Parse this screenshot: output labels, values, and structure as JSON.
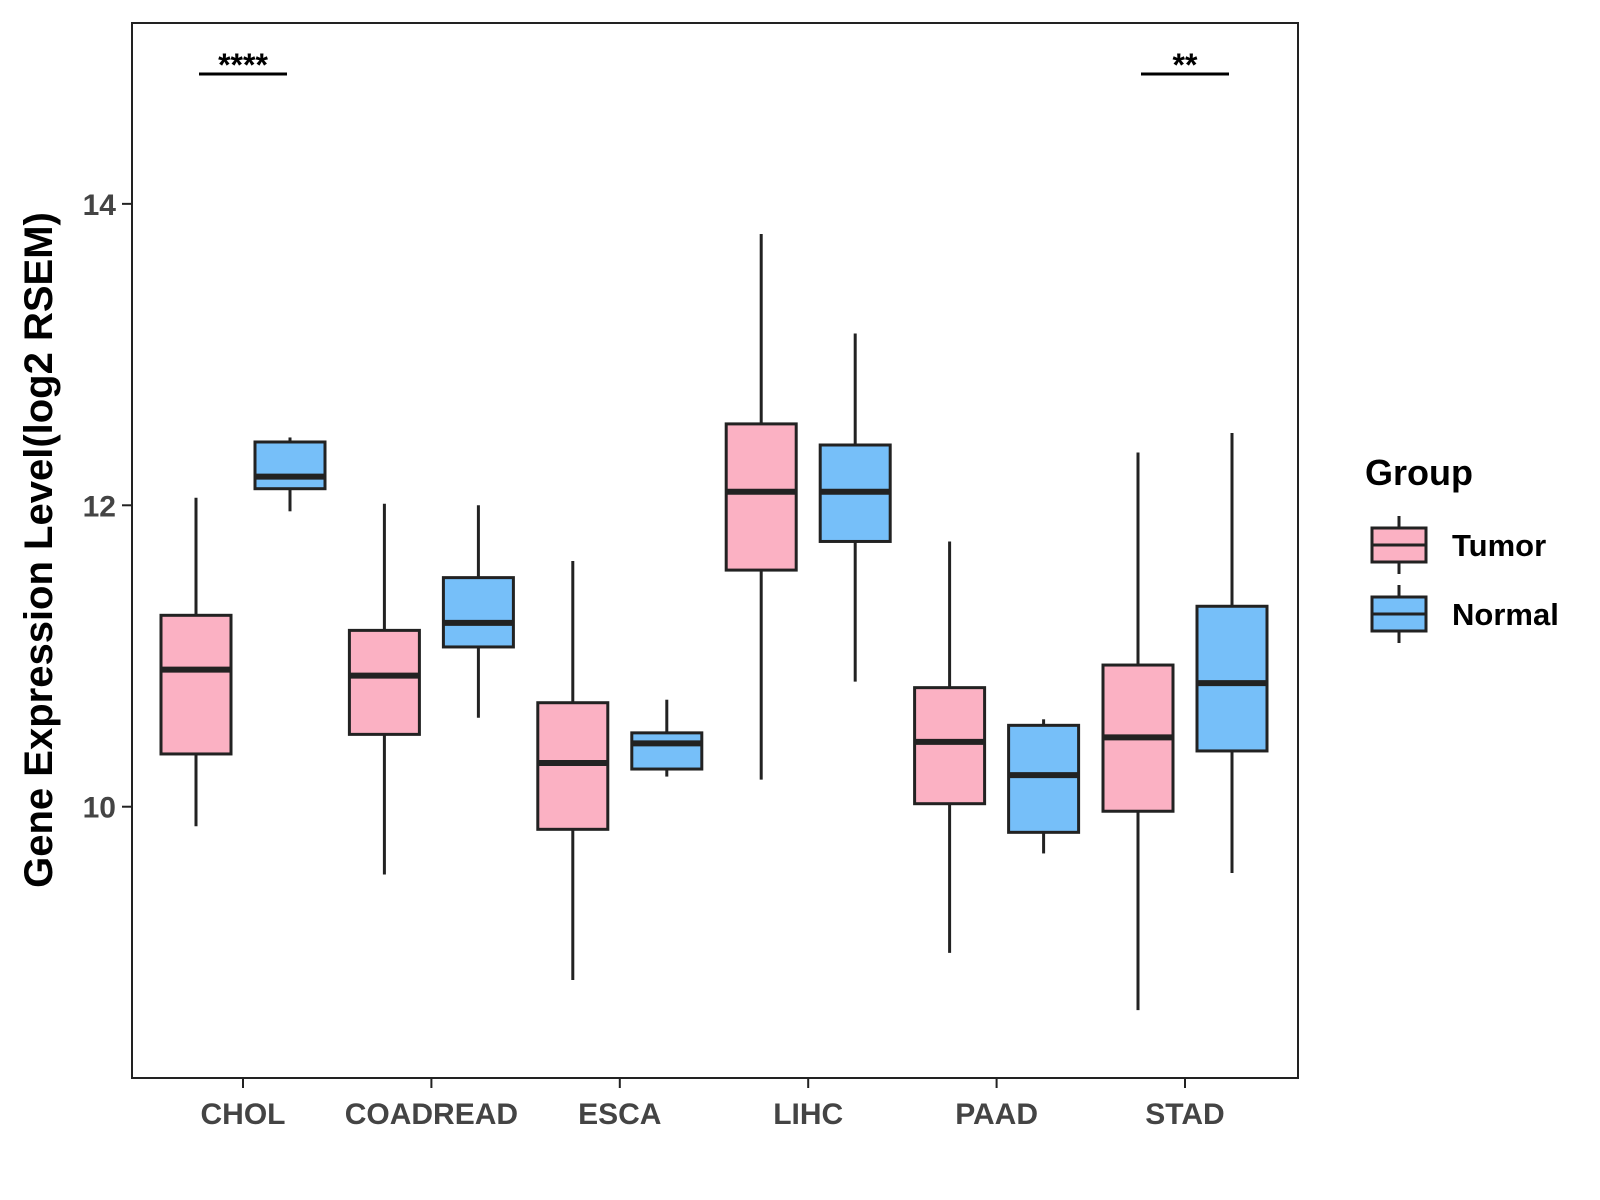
{
  "chart_data": {
    "type": "boxplot",
    "title": "",
    "xlabel": "",
    "ylabel": "Gene Expression Level(log2 RSEM)",
    "ylim": [
      8.2,
      15.2
    ],
    "yticks": [
      10,
      12,
      14
    ],
    "categories": [
      "CHOL",
      "COADREAD",
      "ESCA",
      "LIHC",
      "PAAD",
      "STAD"
    ],
    "legend": {
      "title": "Group",
      "position": "right",
      "entries": [
        {
          "name": "Tumor",
          "color": "#FBB1C3"
        },
        {
          "name": "Normal",
          "color": "#76BFF9"
        }
      ]
    },
    "series": [
      {
        "name": "Tumor",
        "color": "#FBB1C3",
        "boxes": [
          {
            "category": "CHOL",
            "whisker_low": 9.87,
            "q1": 10.35,
            "median": 10.91,
            "q3": 11.27,
            "whisker_high": 12.05
          },
          {
            "category": "COADREAD",
            "whisker_low": 9.55,
            "q1": 10.48,
            "median": 10.87,
            "q3": 11.17,
            "whisker_high": 12.01
          },
          {
            "category": "ESCA",
            "whisker_low": 8.85,
            "q1": 9.85,
            "median": 10.29,
            "q3": 10.69,
            "whisker_high": 11.63
          },
          {
            "category": "LIHC",
            "whisker_low": 10.18,
            "q1": 11.57,
            "median": 12.09,
            "q3": 12.54,
            "whisker_high": 13.8
          },
          {
            "category": "PAAD",
            "whisker_low": 9.03,
            "q1": 10.02,
            "median": 10.43,
            "q3": 10.79,
            "whisker_high": 11.76
          },
          {
            "category": "STAD",
            "whisker_low": 8.65,
            "q1": 9.97,
            "median": 10.46,
            "q3": 10.94,
            "whisker_high": 12.35
          }
        ]
      },
      {
        "name": "Normal",
        "color": "#76BFF9",
        "boxes": [
          {
            "category": "CHOL",
            "whisker_low": 11.96,
            "q1": 12.11,
            "median": 12.19,
            "q3": 12.42,
            "whisker_high": 12.45
          },
          {
            "category": "COADREAD",
            "whisker_low": 10.59,
            "q1": 11.06,
            "median": 11.22,
            "q3": 11.52,
            "whisker_high": 12.0
          },
          {
            "category": "ESCA",
            "whisker_low": 10.2,
            "q1": 10.25,
            "median": 10.42,
            "q3": 10.49,
            "whisker_high": 10.71
          },
          {
            "category": "LIHC",
            "whisker_low": 10.83,
            "q1": 11.76,
            "median": 12.09,
            "q3": 12.4,
            "whisker_high": 13.14
          },
          {
            "category": "PAAD",
            "whisker_low": 9.69,
            "q1": 9.83,
            "median": 10.21,
            "q3": 10.54,
            "whisker_high": 10.58
          },
          {
            "category": "STAD",
            "whisker_low": 9.56,
            "q1": 10.37,
            "median": 10.82,
            "q3": 11.33,
            "whisker_high": 12.48
          }
        ]
      }
    ],
    "annotations": [
      {
        "category": "CHOL",
        "text": "****"
      },
      {
        "category": "STAD",
        "text": "**"
      }
    ]
  }
}
